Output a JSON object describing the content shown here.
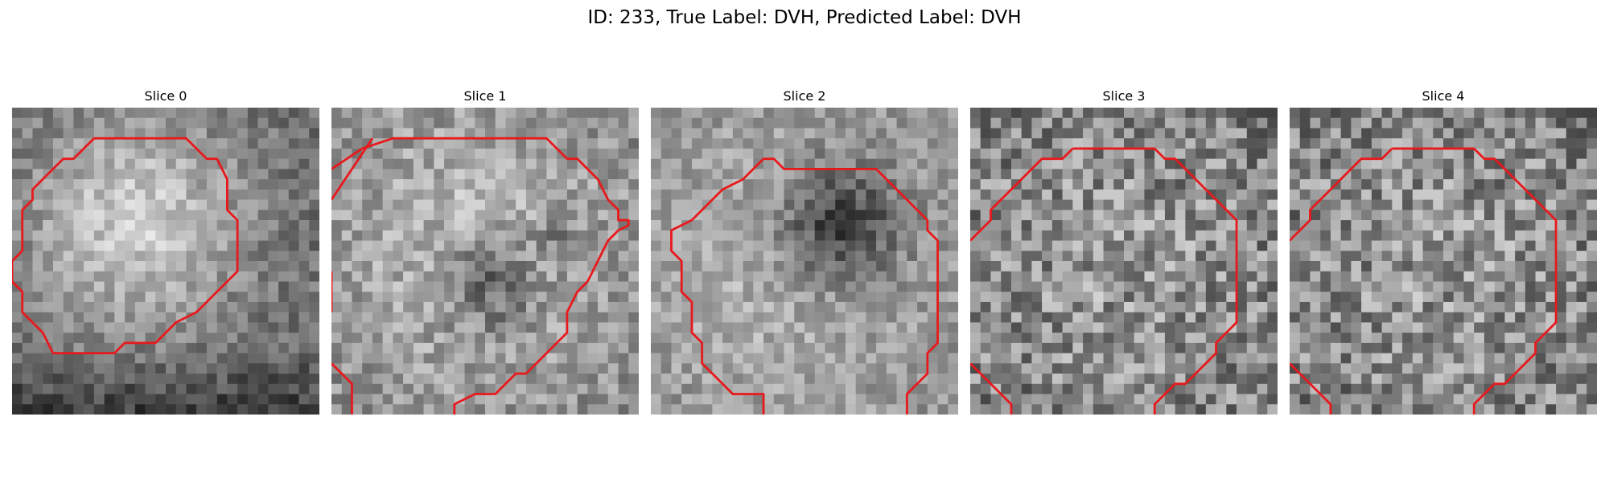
{
  "figure": {
    "title": "ID: 233, True Label: DVH, Predicted Label: DVH"
  },
  "panels": [
    {
      "title": "Slice 0"
    },
    {
      "title": "Slice 1"
    },
    {
      "title": "Slice 2"
    },
    {
      "title": "Slice 3"
    },
    {
      "title": "Slice 4"
    }
  ],
  "colors": {
    "contour": "#e8191c",
    "background": "#ffffff"
  }
}
